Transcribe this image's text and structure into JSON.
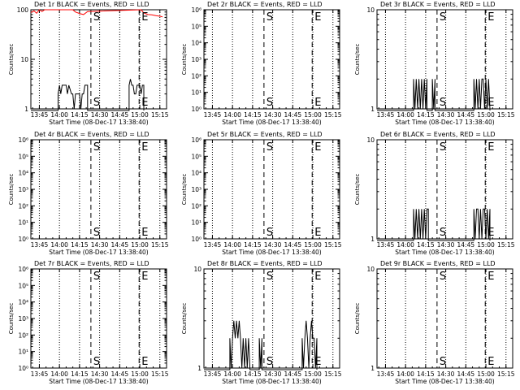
{
  "figure": {
    "colors": {
      "background": "#ffffff",
      "axes": "#000000",
      "events": "#000000",
      "lld": "#ff0000"
    },
    "x_ticks": [
      "13:45",
      "14:00",
      "14:15",
      "14:30",
      "14:45",
      "15:00",
      "15:15"
    ],
    "x_label": "Start Time (08-Dec-17 13:38:40)",
    "y_label": "Counts/sec"
  },
  "chart_data": [
    {
      "type": "line",
      "title": "Det 1r BLACK = Events, RED = LLD",
      "xlim": [
        "13:38:40",
        "15:20:00"
      ],
      "y_scale": "log",
      "ylim": [
        1,
        100
      ],
      "y_ticks": [
        "1",
        "10",
        "100"
      ],
      "markers": [
        {
          "label": "S",
          "time": "14:23:30"
        },
        {
          "label": "E",
          "time": "14:59:30"
        }
      ],
      "series": [
        {
          "color": "red",
          "points": [
            [
              "13:38:40",
              88
            ],
            [
              "13:41:00",
              95
            ],
            [
              "13:43:00",
              85
            ],
            [
              "13:45:00",
              100
            ],
            [
              "13:47:00",
              92
            ],
            [
              "13:49:00",
              100
            ],
            [
              "14:10:00",
              100
            ],
            [
              "14:12:00",
              90
            ],
            [
              "14:15:00",
              84
            ],
            [
              "14:18:00",
              80
            ],
            [
              "14:21:00",
              92
            ],
            [
              "15:01:00",
              100
            ],
            [
              "15:03:00",
              86
            ],
            [
              "15:06:00",
              80
            ],
            [
              "15:09:00",
              79
            ],
            [
              "15:12:00",
              76
            ],
            [
              "15:15:00",
              74
            ],
            [
              "15:17:00",
              72
            ]
          ]
        },
        {
          "color": "black",
          "points": [
            [
              "13:38:40",
              0
            ],
            [
              "13:59:00",
              0
            ],
            [
              "13:59:00",
              2
            ],
            [
              "14:00:00",
              3
            ],
            [
              "14:01:00",
              2
            ],
            [
              "14:02:00",
              3
            ],
            [
              "14:05:00",
              3
            ],
            [
              "14:06:00",
              2
            ],
            [
              "14:07:00",
              3
            ],
            [
              "14:09:00",
              2
            ],
            [
              "14:10:00",
              2
            ],
            [
              "14:11:00",
              1
            ],
            [
              "14:12:00",
              2
            ],
            [
              "14:15:00",
              2
            ],
            [
              "14:16:00",
              1
            ],
            [
              "14:17:00",
              2
            ],
            [
              "14:18:00",
              2
            ],
            [
              "14:19:00",
              3
            ],
            [
              "14:21:00",
              3
            ],
            [
              "14:21:00",
              0
            ],
            [
              "14:52:00",
              0
            ],
            [
              "14:52:00",
              3
            ],
            [
              "14:53:00",
              4
            ],
            [
              "14:54:00",
              3
            ],
            [
              "14:55:00",
              3
            ],
            [
              "14:56:00",
              2
            ],
            [
              "14:57:00",
              2
            ],
            [
              "14:58:00",
              3
            ],
            [
              "15:00:00",
              3
            ],
            [
              "15:01:00",
              2
            ],
            [
              "15:02:00",
              3
            ],
            [
              "15:03:00",
              3
            ],
            [
              "15:03:00",
              0
            ]
          ]
        }
      ]
    },
    {
      "type": "line",
      "title": "Det 2r BLACK = Events, RED = LLD",
      "xlim": [
        "13:38:40",
        "15:20:00"
      ],
      "y_scale": "log",
      "ylim": [
        1,
        1000000
      ],
      "y_ticks": [
        "10⁰",
        "10¹",
        "10²",
        "10³",
        "10⁴",
        "10⁵",
        "10⁶"
      ],
      "markers": [
        {
          "label": "S",
          "time": "14:23:30"
        },
        {
          "label": "E",
          "time": "14:59:30"
        }
      ],
      "series": []
    },
    {
      "type": "line",
      "title": "Det 3r BLACK = Events, RED = LLD",
      "xlim": [
        "13:38:40",
        "15:20:00"
      ],
      "y_scale": "log",
      "ylim": [
        1,
        10
      ],
      "y_ticks": [
        "1",
        "10"
      ],
      "markers": [
        {
          "label": "S",
          "time": "14:23:30"
        },
        {
          "label": "E",
          "time": "14:59:30"
        }
      ],
      "series": [
        {
          "color": "black",
          "points": [
            [
              "13:38:40",
              0
            ],
            [
              "14:06:00",
              0
            ],
            [
              "14:06:00",
              2
            ],
            [
              "14:07:00",
              1
            ],
            [
              "14:08:00",
              2
            ],
            [
              "14:09:00",
              1
            ],
            [
              "14:10:00",
              2
            ],
            [
              "14:11:00",
              1
            ],
            [
              "14:12:00",
              2
            ],
            [
              "14:13:00",
              1
            ],
            [
              "14:14:00",
              2
            ],
            [
              "14:15:00",
              1
            ],
            [
              "14:16:00",
              2
            ],
            [
              "14:16:00",
              0
            ],
            [
              "14:20:00",
              0
            ],
            [
              "14:20:00",
              2
            ],
            [
              "14:21:00",
              1
            ],
            [
              "14:22:00",
              2
            ],
            [
              "14:22:00",
              0
            ],
            [
              "14:51:00",
              0
            ],
            [
              "14:51:00",
              2
            ],
            [
              "14:52:00",
              1
            ],
            [
              "14:53:00",
              2
            ],
            [
              "14:54:00",
              1
            ],
            [
              "14:55:00",
              2
            ],
            [
              "14:56:00",
              1
            ],
            [
              "14:57:00",
              2
            ],
            [
              "14:58:00",
              2
            ],
            [
              "14:59:00",
              1
            ],
            [
              "15:00:00",
              2
            ],
            [
              "15:01:00",
              1
            ],
            [
              "15:02:00",
              2
            ],
            [
              "15:03:00",
              1
            ],
            [
              "15:03:00",
              0
            ]
          ]
        }
      ]
    },
    {
      "type": "line",
      "title": "Det 4r BLACK = Events, RED = LLD",
      "xlim": [
        "13:38:40",
        "15:20:00"
      ],
      "y_scale": "log",
      "ylim": [
        1,
        1000000
      ],
      "y_ticks": [
        "10⁰",
        "10¹",
        "10²",
        "10³",
        "10⁴",
        "10⁵",
        "10⁶"
      ],
      "markers": [
        {
          "label": "S",
          "time": "14:23:30"
        },
        {
          "label": "E",
          "time": "14:59:30"
        }
      ],
      "series": []
    },
    {
      "type": "line",
      "title": "Det 5r BLACK = Events, RED = LLD",
      "xlim": [
        "13:38:40",
        "15:20:00"
      ],
      "y_scale": "log",
      "ylim": [
        1,
        1000000
      ],
      "y_ticks": [
        "10⁰",
        "10¹",
        "10²",
        "10³",
        "10⁴",
        "10⁵",
        "10⁶"
      ],
      "markers": [
        {
          "label": "S",
          "time": "14:23:30"
        },
        {
          "label": "E",
          "time": "14:59:30"
        }
      ],
      "series": []
    },
    {
      "type": "line",
      "title": "Det 6r BLACK = Events, RED = LLD",
      "xlim": [
        "13:38:40",
        "15:20:00"
      ],
      "y_scale": "log",
      "ylim": [
        1,
        10
      ],
      "y_ticks": [
        "1",
        "10"
      ],
      "markers": [
        {
          "label": "S",
          "time": "14:23:30"
        },
        {
          "label": "E",
          "time": "14:59:30"
        }
      ],
      "series": [
        {
          "color": "black",
          "points": [
            [
              "13:38:40",
              0
            ],
            [
              "14:06:00",
              0
            ],
            [
              "14:06:00",
              2
            ],
            [
              "14:07:00",
              1
            ],
            [
              "14:08:00",
              2
            ],
            [
              "14:09:00",
              1
            ],
            [
              "14:10:00",
              2
            ],
            [
              "14:11:00",
              1
            ],
            [
              "14:12:00",
              2
            ],
            [
              "14:13:00",
              1
            ],
            [
              "14:14:00",
              2
            ],
            [
              "14:15:00",
              1
            ],
            [
              "14:16:00",
              2
            ],
            [
              "14:17:00",
              2
            ],
            [
              "14:17:00",
              0
            ],
            [
              "14:51:00",
              0
            ],
            [
              "14:51:00",
              2
            ],
            [
              "14:52:00",
              1
            ],
            [
              "14:53:00",
              2
            ],
            [
              "14:54:00",
              2
            ],
            [
              "14:55:00",
              1
            ],
            [
              "14:56:00",
              2
            ],
            [
              "14:57:00",
              1
            ],
            [
              "14:58:00",
              2
            ],
            [
              "14:59:00",
              2
            ],
            [
              "15:00:00",
              1
            ],
            [
              "15:01:00",
              2
            ],
            [
              "15:02:00",
              1
            ],
            [
              "15:03:00",
              2
            ],
            [
              "15:03:00",
              0
            ]
          ]
        }
      ]
    },
    {
      "type": "line",
      "title": "Det 7r BLACK = Events, RED = LLD",
      "xlim": [
        "13:38:40",
        "15:20:00"
      ],
      "y_scale": "log",
      "ylim": [
        1,
        1000000
      ],
      "y_ticks": [
        "10⁰",
        "10¹",
        "10²",
        "10³",
        "10⁴",
        "10⁵",
        "10⁶"
      ],
      "markers": [
        {
          "label": "S",
          "time": "14:23:30"
        },
        {
          "label": "E",
          "time": "14:59:30"
        }
      ],
      "series": []
    },
    {
      "type": "line",
      "title": "Det 8r BLACK = Events, RED = LLD",
      "xlim": [
        "13:38:40",
        "15:20:00"
      ],
      "y_scale": "log",
      "ylim": [
        1,
        10
      ],
      "y_ticks": [
        "1",
        "10"
      ],
      "markers": [
        {
          "label": "S",
          "time": "14:23:30"
        },
        {
          "label": "E",
          "time": "14:59:30"
        }
      ],
      "series": [
        {
          "color": "black",
          "points": [
            [
              "13:38:40",
              0
            ],
            [
              "13:58:00",
              0
            ],
            [
              "13:58:00",
              2
            ],
            [
              "13:59:00",
              1
            ],
            [
              "14:00:00",
              2
            ],
            [
              "14:01:00",
              3
            ],
            [
              "14:02:00",
              2
            ],
            [
              "14:03:00",
              3
            ],
            [
              "14:04:00",
              2
            ],
            [
              "14:05:00",
              3
            ],
            [
              "14:06:00",
              2
            ],
            [
              "14:07:00",
              1
            ],
            [
              "14:08:00",
              2
            ],
            [
              "14:09:00",
              1
            ],
            [
              "14:10:00",
              2
            ],
            [
              "14:11:00",
              1
            ],
            [
              "14:12:00",
              2
            ],
            [
              "14:13:00",
              1
            ],
            [
              "14:13:00",
              0
            ],
            [
              "14:20:00",
              0
            ],
            [
              "14:20:00",
              2
            ],
            [
              "14:21:00",
              1
            ],
            [
              "14:22:00",
              2
            ],
            [
              "14:22:00",
              0
            ],
            [
              "14:52:00",
              0
            ],
            [
              "14:52:00",
              2
            ],
            [
              "14:53:00",
              1
            ],
            [
              "14:54:00",
              2
            ],
            [
              "14:55:00",
              3
            ],
            [
              "14:56:00",
              2
            ],
            [
              "14:57:00",
              1
            ],
            [
              "14:58:00",
              2
            ],
            [
              "14:59:00",
              3
            ],
            [
              "15:00:00",
              2
            ],
            [
              "15:01:00",
              2
            ],
            [
              "15:02:00",
              1
            ],
            [
              "15:03:00",
              2
            ],
            [
              "15:03:00",
              0
            ]
          ]
        }
      ]
    },
    {
      "type": "line",
      "title": "Det 9r BLACK = Events, RED = LLD",
      "xlim": [
        "13:38:40",
        "15:20:00"
      ],
      "y_scale": "log",
      "ylim": [
        1,
        10
      ],
      "y_ticks": [
        "1",
        "10"
      ],
      "markers": [
        {
          "label": "S",
          "time": "14:23:30"
        },
        {
          "label": "E",
          "time": "14:59:30"
        }
      ],
      "series": []
    }
  ]
}
